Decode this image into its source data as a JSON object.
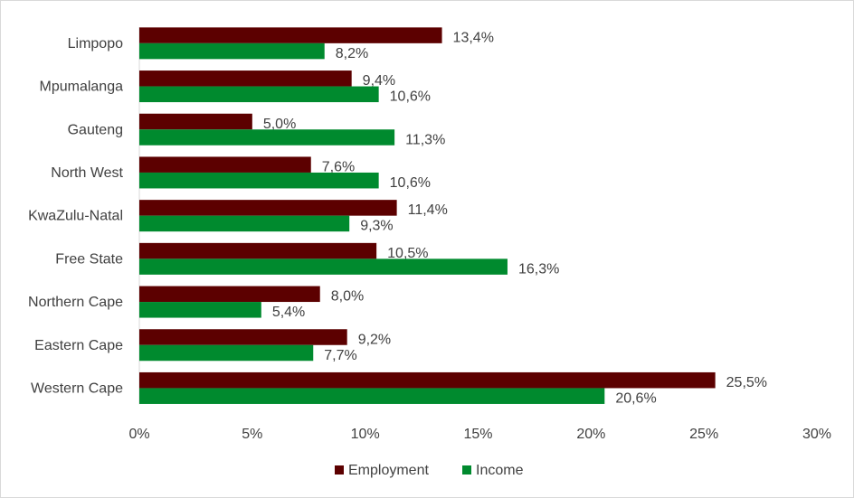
{
  "chart_data": {
    "type": "bar",
    "orientation": "horizontal",
    "categories": [
      "Limpopo",
      "Mpumalanga",
      "Gauteng",
      "North West",
      "KwaZulu-Natal",
      "Free State",
      "Northern Cape",
      "Eastern Cape",
      "Western Cape"
    ],
    "series": [
      {
        "name": "Employment",
        "color": "#5c0000",
        "values": [
          13.4,
          9.4,
          5.0,
          7.6,
          11.4,
          10.5,
          8.0,
          9.2,
          25.5
        ],
        "labels": [
          "13,4%",
          "9,4%",
          "5,0%",
          "7,6%",
          "11,4%",
          "10,5%",
          "8,0%",
          "9,2%",
          "25,5%"
        ]
      },
      {
        "name": "Income",
        "color": "#008a2e",
        "values": [
          8.2,
          10.6,
          11.3,
          10.6,
          9.3,
          16.3,
          5.4,
          7.7,
          20.6
        ],
        "labels": [
          "8,2%",
          "10,6%",
          "11,3%",
          "10,6%",
          "9,3%",
          "16,3%",
          "5,4%",
          "7,7%",
          "20,6%"
        ]
      }
    ],
    "xlim": [
      0,
      30
    ],
    "x_ticks": [
      0,
      5,
      10,
      15,
      20,
      25,
      30
    ],
    "x_tick_labels": [
      "0%",
      "5%",
      "10%",
      "15%",
      "20%",
      "25%",
      "30%"
    ],
    "grid": false,
    "legend_position": "bottom-center",
    "title": "",
    "xlabel": "",
    "ylabel": ""
  }
}
